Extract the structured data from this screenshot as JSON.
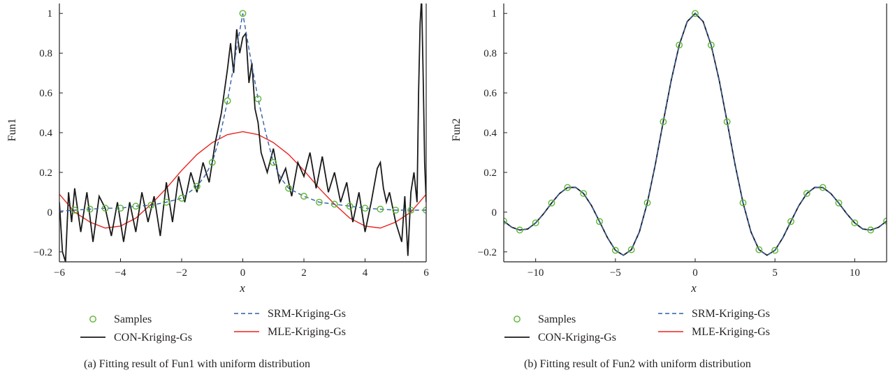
{
  "colors": {
    "samples": "#5cb531",
    "con": "#1a1a1a",
    "srm": "#2f5fa8",
    "mle": "#e8251f",
    "axis": "#231f20"
  },
  "chart_data": [
    {
      "type": "line",
      "panel": "a",
      "caption": "(a)  Fitting result of Fun1 with uniform distribution",
      "xlabel": "x",
      "ylabel": "Fun1",
      "xlim": [
        -6,
        6
      ],
      "ylim": [
        -0.25,
        1.05
      ],
      "xticks": [
        -6,
        -4,
        -2,
        0,
        2,
        4,
        6
      ],
      "xtick_labels": [
        "−6",
        "−4",
        "−2",
        "0",
        "2",
        "4",
        "6"
      ],
      "yticks": [
        -0.2,
        0,
        0.2,
        0.4,
        0.6,
        0.8,
        1
      ],
      "ytick_labels": [
        "−0.2",
        "0",
        "0.2",
        "0.4",
        "0.6",
        "0.8",
        "1"
      ],
      "grid": false,
      "legend": {
        "position": "bottom",
        "entries": [
          {
            "label": "Samples",
            "style": "marker"
          },
          {
            "label": "CON-Kriging-Gs",
            "style": "solid",
            "series": "con"
          },
          {
            "label": "SRM-Kriging-Gs",
            "style": "dashed",
            "series": "srm"
          },
          {
            "label": "MLE-Kriging-Gs",
            "style": "solid",
            "series": "mle"
          }
        ]
      },
      "samples": {
        "x": [
          -5.5,
          -5.0,
          -4.5,
          -4.0,
          -3.5,
          -3.0,
          -2.5,
          -2.0,
          -1.5,
          -1.0,
          -0.5,
          0.0,
          0.5,
          1.0,
          1.5,
          2.0,
          2.5,
          3.0,
          3.5,
          4.0,
          4.5,
          5.0,
          5.5,
          6.0
        ],
        "y": [
          0.01,
          0.015,
          0.02,
          0.02,
          0.03,
          0.035,
          0.05,
          0.07,
          0.13,
          0.25,
          0.56,
          1.0,
          0.57,
          0.25,
          0.12,
          0.08,
          0.05,
          0.04,
          0.03,
          0.02,
          0.015,
          0.01,
          0.01,
          0.01
        ]
      },
      "series": [
        {
          "key": "srm",
          "name": "SRM-Kriging-Gs",
          "x": [
            -6,
            -5.5,
            -5,
            -4.5,
            -4,
            -3.5,
            -3,
            -2.5,
            -2,
            -1.5,
            -1.25,
            -1,
            -0.75,
            -0.5,
            -0.25,
            0,
            0.25,
            0.5,
            0.75,
            1,
            1.25,
            1.5,
            2,
            2.5,
            3,
            3.5,
            4,
            4.5,
            5,
            5.5,
            6
          ],
          "y": [
            0.005,
            0.01,
            0.015,
            0.02,
            0.02,
            0.03,
            0.035,
            0.05,
            0.07,
            0.13,
            0.18,
            0.25,
            0.38,
            0.56,
            0.78,
            1.0,
            0.78,
            0.57,
            0.4,
            0.25,
            0.17,
            0.12,
            0.08,
            0.05,
            0.04,
            0.03,
            0.02,
            0.015,
            0.01,
            0.01,
            0.01
          ]
        },
        {
          "key": "mle",
          "name": "MLE-Kriging-Gs",
          "x": [
            -6,
            -5.5,
            -5,
            -4.5,
            -4,
            -3.5,
            -3,
            -2.5,
            -2,
            -1.5,
            -1,
            -0.5,
            0,
            0.5,
            1,
            1.5,
            2,
            2.5,
            3,
            3.5,
            4,
            4.5,
            5,
            5.5,
            6
          ],
          "y": [
            0.09,
            0.0,
            -0.05,
            -0.08,
            -0.07,
            -0.03,
            0.04,
            0.12,
            0.21,
            0.29,
            0.35,
            0.39,
            0.405,
            0.39,
            0.35,
            0.29,
            0.21,
            0.12,
            0.04,
            -0.03,
            -0.07,
            -0.08,
            -0.05,
            0.0,
            0.09
          ]
        },
        {
          "key": "con",
          "name": "CON-Kriging-Gs",
          "x": [
            -6,
            -5.9,
            -5.8,
            -5.7,
            -5.6,
            -5.5,
            -5.3,
            -5.1,
            -4.9,
            -4.7,
            -4.5,
            -4.3,
            -4.1,
            -3.9,
            -3.7,
            -3.5,
            -3.3,
            -3.1,
            -2.9,
            -2.7,
            -2.5,
            -2.3,
            -2.1,
            -1.9,
            -1.7,
            -1.5,
            -1.3,
            -1.1,
            -0.9,
            -0.7,
            -0.5,
            -0.4,
            -0.3,
            -0.2,
            -0.1,
            0,
            0.1,
            0.2,
            0.3,
            0.4,
            0.5,
            0.6,
            0.8,
            1.0,
            1.2,
            1.4,
            1.6,
            1.8,
            2.0,
            2.2,
            2.4,
            2.6,
            2.8,
            3.0,
            3.2,
            3.4,
            3.6,
            3.8,
            4.0,
            4.2,
            4.4,
            4.5,
            4.6,
            4.7,
            4.8,
            5.0,
            5.2,
            5.3,
            5.4,
            5.5,
            5.6,
            5.7,
            5.75,
            5.8,
            5.85,
            5.9,
            5.95,
            6.0
          ],
          "y": [
            0.05,
            -0.2,
            -0.25,
            0.1,
            -0.05,
            0.12,
            -0.1,
            0.1,
            -0.15,
            0.08,
            0.02,
            -0.12,
            0.05,
            -0.15,
            0.05,
            -0.1,
            0.1,
            -0.05,
            0.08,
            -0.12,
            0.15,
            -0.05,
            0.18,
            0.05,
            0.2,
            0.1,
            0.25,
            0.15,
            0.35,
            0.5,
            0.72,
            0.85,
            0.7,
            0.92,
            0.8,
            0.88,
            0.9,
            0.65,
            0.75,
            0.52,
            0.45,
            0.3,
            0.2,
            0.32,
            0.15,
            0.22,
            0.08,
            0.25,
            0.18,
            0.3,
            0.12,
            0.28,
            0.1,
            0.2,
            0.05,
            0.15,
            -0.05,
            0.1,
            -0.1,
            0.05,
            0.22,
            0.25,
            0.12,
            0.05,
            0.1,
            -0.05,
            -0.15,
            0.08,
            -0.22,
            0.1,
            0.2,
            0.05,
            0.6,
            0.95,
            1.08,
            0.7,
            0.25,
            0.05
          ]
        }
      ]
    },
    {
      "type": "line",
      "panel": "b",
      "caption": "(b)  Fitting result of Fun2 with uniform distribution",
      "xlabel": "x",
      "ylabel": "Fun2",
      "xlim": [
        -12,
        12
      ],
      "ylim": [
        -0.25,
        1.05
      ],
      "xticks": [
        -10,
        -5,
        0,
        5,
        10
      ],
      "xtick_labels": [
        "−10",
        "−5",
        "0",
        "5",
        "10"
      ],
      "yticks": [
        -0.2,
        0,
        0.2,
        0.4,
        0.6,
        0.8,
        1
      ],
      "ytick_labels": [
        "−0.2",
        "0",
        "0.2",
        "0.4",
        "0.6",
        "0.8",
        "1"
      ],
      "grid": false,
      "legend": {
        "position": "bottom",
        "entries": [
          {
            "label": "Samples",
            "style": "marker"
          },
          {
            "label": "CON-Kriging-Gs",
            "style": "solid",
            "series": "con"
          },
          {
            "label": "SRM-Kriging-Gs",
            "style": "dashed",
            "series": "srm"
          },
          {
            "label": "MLE-Kriging-Gs",
            "style": "solid",
            "series": "mle"
          }
        ]
      },
      "samples": {
        "x": [
          -12,
          -11,
          -10,
          -9,
          -8,
          -7,
          -6,
          -5,
          -4,
          -3,
          -2,
          -1,
          0,
          1,
          2,
          3,
          4,
          5,
          6,
          7,
          8,
          9,
          10,
          11,
          12
        ],
        "y": [
          -0.045,
          -0.09,
          -0.054,
          0.046,
          0.124,
          0.094,
          -0.047,
          -0.192,
          -0.189,
          0.047,
          0.455,
          0.841,
          1.0,
          0.841,
          0.455,
          0.047,
          -0.189,
          -0.192,
          -0.047,
          0.094,
          0.124,
          0.046,
          -0.054,
          -0.09,
          -0.045
        ]
      },
      "series": [
        {
          "key": "con",
          "name": "CON-Kriging-Gs",
          "x": [
            -12,
            -11.5,
            -11,
            -10.5,
            -10,
            -9.5,
            -9,
            -8.5,
            -8,
            -7.5,
            -7,
            -6.5,
            -6,
            -5.5,
            -5,
            -4.5,
            -4,
            -3.5,
            -3,
            -2.5,
            -2,
            -1.5,
            -1,
            -0.5,
            0,
            0.5,
            1,
            1.5,
            2,
            2.5,
            3,
            3.5,
            4,
            4.5,
            5,
            5.5,
            6,
            6.5,
            7,
            7.5,
            8,
            8.5,
            9,
            9.5,
            10,
            10.5,
            11,
            11.5,
            12
          ],
          "y": [
            -0.045,
            -0.076,
            -0.09,
            -0.085,
            -0.054,
            -0.008,
            0.046,
            0.094,
            0.124,
            0.125,
            0.094,
            0.033,
            -0.047,
            -0.128,
            -0.192,
            -0.217,
            -0.189,
            -0.1,
            0.047,
            0.239,
            0.455,
            0.665,
            0.841,
            0.959,
            1.0,
            0.959,
            0.841,
            0.665,
            0.455,
            0.239,
            0.047,
            -0.1,
            -0.189,
            -0.217,
            -0.192,
            -0.128,
            -0.047,
            0.033,
            0.094,
            0.125,
            0.124,
            0.094,
            0.046,
            -0.008,
            -0.054,
            -0.085,
            -0.09,
            -0.076,
            -0.045
          ]
        },
        {
          "key": "srm",
          "name": "SRM-Kriging-Gs",
          "x": [
            -12,
            -11.5,
            -11,
            -10.5,
            -10,
            -9.5,
            -9,
            -8.5,
            -8,
            -7.5,
            -7,
            -6.5,
            -6,
            -5.5,
            -5,
            -4.5,
            -4,
            -3.5,
            -3,
            -2.5,
            -2,
            -1.5,
            -1,
            -0.5,
            0,
            0.5,
            1,
            1.5,
            2,
            2.5,
            3,
            3.5,
            4,
            4.5,
            5,
            5.5,
            6,
            6.5,
            7,
            7.5,
            8,
            8.5,
            9,
            9.5,
            10,
            10.5,
            11,
            11.5,
            12
          ],
          "y": [
            -0.045,
            -0.076,
            -0.09,
            -0.085,
            -0.054,
            -0.008,
            0.046,
            0.094,
            0.124,
            0.125,
            0.094,
            0.033,
            -0.047,
            -0.128,
            -0.192,
            -0.217,
            -0.189,
            -0.1,
            0.047,
            0.239,
            0.455,
            0.665,
            0.841,
            0.959,
            1.0,
            0.959,
            0.841,
            0.665,
            0.455,
            0.239,
            0.047,
            -0.1,
            -0.189,
            -0.217,
            -0.192,
            -0.128,
            -0.047,
            0.033,
            0.094,
            0.125,
            0.124,
            0.094,
            0.046,
            -0.008,
            -0.054,
            -0.085,
            -0.09,
            -0.076,
            -0.045
          ]
        },
        {
          "key": "mle",
          "name": "MLE-Kriging-Gs",
          "x": [
            -12,
            -11.5,
            -11,
            -10.5,
            -10,
            -9.5,
            -9,
            -8.5,
            -8,
            -7.5,
            -7,
            -6.5,
            -6,
            -5.5,
            -5,
            -4.5,
            -4,
            -3.5,
            -3,
            -2.5,
            -2,
            -1.5,
            -1,
            -0.5,
            0,
            0.5,
            1,
            1.5,
            2,
            2.5,
            3,
            3.5,
            4,
            4.5,
            5,
            5.5,
            6,
            6.5,
            7,
            7.5,
            8,
            8.5,
            9,
            9.5,
            10,
            10.5,
            11,
            11.5,
            12
          ],
          "y": [
            -0.045,
            -0.076,
            -0.09,
            -0.085,
            -0.054,
            -0.008,
            0.046,
            0.094,
            0.124,
            0.125,
            0.094,
            0.033,
            -0.047,
            -0.128,
            -0.192,
            -0.217,
            -0.189,
            -0.1,
            0.047,
            0.239,
            0.455,
            0.665,
            0.841,
            0.959,
            1.0,
            0.959,
            0.841,
            0.665,
            0.455,
            0.239,
            0.047,
            -0.1,
            -0.189,
            -0.217,
            -0.192,
            -0.128,
            -0.047,
            0.033,
            0.094,
            0.125,
            0.124,
            0.094,
            0.046,
            -0.008,
            -0.054,
            -0.085,
            -0.09,
            -0.076,
            -0.045
          ]
        }
      ]
    }
  ]
}
